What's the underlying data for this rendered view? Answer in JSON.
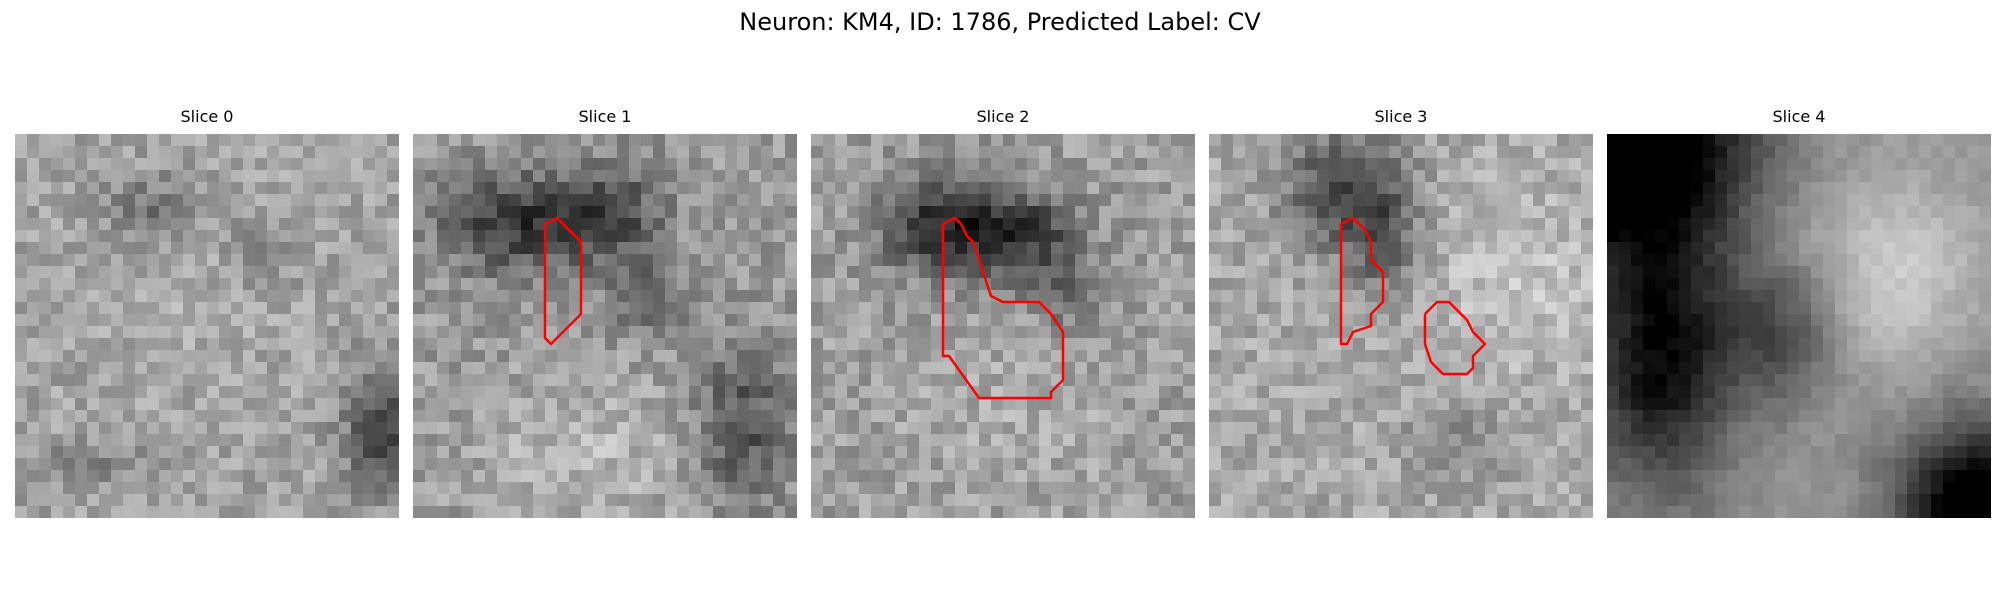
{
  "figure": {
    "title": "Neuron: KM4, ID: 1786, Predicted Label: CV"
  },
  "contour_color": "#ff0000",
  "slices": [
    {
      "title": "Slice 0"
    },
    {
      "title": "Slice 1"
    },
    {
      "title": "Slice 2"
    },
    {
      "title": "Slice 3"
    },
    {
      "title": "Slice 4"
    }
  ]
}
